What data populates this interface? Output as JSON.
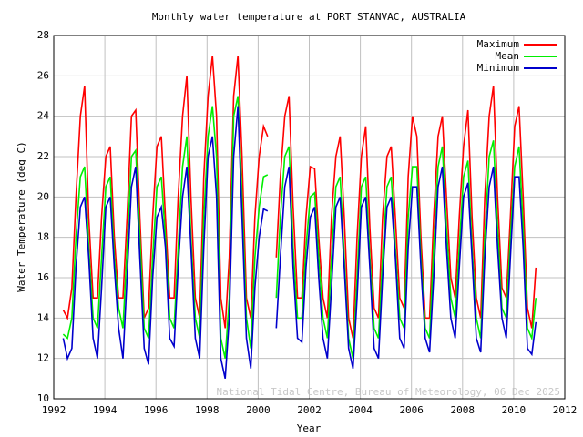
{
  "chart_data": {
    "type": "line",
    "title": "Monthly water temperature at PORT STANVAC, AUSTRALIA",
    "x_label": "Year",
    "y_label": "Water Temperature (deg C)",
    "annotation": "National Tidal Centre, Bureau of Meteorology, 06 Dec 2025",
    "x": [
      1992.37,
      1992.54,
      1992.71,
      1992.87,
      1993.04,
      1993.21,
      1993.37,
      1993.54,
      1993.71,
      1993.87,
      1994.04,
      1994.21,
      1994.37,
      1994.54,
      1994.71,
      1994.87,
      1995.04,
      1995.21,
      1995.37,
      1995.54,
      1995.71,
      1995.87,
      1996.04,
      1996.21,
      1996.37,
      1996.54,
      1996.71,
      1996.87,
      1997.04,
      1997.21,
      1997.37,
      1997.54,
      1997.71,
      1997.87,
      1998.04,
      1998.21,
      1998.37,
      1998.54,
      1998.71,
      1998.87,
      1999.04,
      1999.21,
      1999.37,
      1999.54,
      1999.71,
      1999.87,
      2000.04,
      2000.21,
      2000.37,
      2000.54,
      2000.71,
      2000.87,
      2001.04,
      2001.21,
      2001.37,
      2001.54,
      2001.71,
      2001.87,
      2002.04,
      2002.21,
      2002.37,
      2002.54,
      2002.71,
      2002.87,
      2003.04,
      2003.21,
      2003.37,
      2003.54,
      2003.71,
      2003.87,
      2004.04,
      2004.21,
      2004.37,
      2004.54,
      2004.71,
      2004.87,
      2005.04,
      2005.21,
      2005.37,
      2005.54,
      2005.71,
      2005.87,
      2006.04,
      2006.21,
      2006.37,
      2006.54,
      2006.71,
      2006.87,
      2007.04,
      2007.21,
      2007.37,
      2007.54,
      2007.71,
      2007.87,
      2008.04,
      2008.21,
      2008.37,
      2008.54,
      2008.71,
      2008.87,
      2009.04,
      2009.21,
      2009.37,
      2009.54,
      2009.71,
      2009.87,
      2010.04,
      2010.21,
      2010.37,
      2010.54,
      2010.71,
      2010.87
    ],
    "series": [
      {
        "name": "Maximum",
        "color": "#ff0000",
        "values": [
          14.4,
          14.0,
          15.5,
          20.0,
          24,
          25.5,
          19,
          15,
          15,
          19,
          22,
          22.5,
          18,
          15,
          15,
          19,
          24,
          24.3,
          19,
          14,
          14.5,
          19,
          22.5,
          23,
          19,
          15,
          15,
          20,
          24,
          26,
          20,
          15,
          14,
          21,
          25,
          27,
          24,
          15,
          13.5,
          17,
          25,
          27,
          22,
          15,
          14,
          19,
          22,
          23.5,
          23,
          null,
          17,
          21,
          24,
          25,
          19.5,
          15,
          15,
          19,
          21.5,
          21.4,
          18,
          15,
          14,
          19,
          22,
          23,
          19,
          14,
          13,
          18,
          22,
          23.5,
          18.5,
          14.5,
          14,
          19,
          22,
          22.5,
          19,
          15,
          14.5,
          21,
          24,
          23,
          18,
          14,
          14,
          19,
          23,
          24,
          20,
          16,
          15,
          19,
          22.5,
          24.3,
          19,
          15,
          14,
          20,
          24,
          25.5,
          20,
          15.5,
          15,
          19,
          23.5,
          24.5,
          20,
          14.5,
          13.5,
          16.5
        ]
      },
      {
        "name": "Mean",
        "color": "#00ee00",
        "values": [
          13.2,
          13.0,
          14.0,
          18.0,
          21,
          21.5,
          17.5,
          14,
          13.5,
          17,
          20.5,
          21,
          17,
          14.5,
          13.5,
          17.5,
          22,
          22.3,
          18,
          13.5,
          13,
          17,
          20.5,
          21,
          18,
          14,
          13.5,
          17.5,
          21.5,
          23,
          18,
          14,
          13,
          19,
          23,
          24.5,
          22,
          13,
          12,
          15,
          24,
          25,
          20,
          14,
          12.5,
          17,
          19.5,
          21,
          21.1,
          null,
          15,
          19,
          22,
          22.5,
          17.5,
          14,
          14,
          17.5,
          20,
          20.2,
          17,
          14,
          13,
          17,
          20.5,
          21,
          17,
          13,
          12,
          16,
          20.5,
          21,
          17,
          13.5,
          13,
          17,
          20.5,
          21,
          17.5,
          14,
          13.5,
          19,
          21.5,
          21.5,
          17,
          13.5,
          13,
          17.5,
          21.5,
          22.5,
          18.5,
          15,
          14,
          17.5,
          21,
          21.8,
          17.5,
          14,
          13,
          18,
          22,
          22.8,
          18.5,
          14.5,
          14,
          18,
          21.5,
          22.5,
          18.5,
          13.5,
          13,
          15
        ]
      },
      {
        "name": "Minimum",
        "color": "#0000cc",
        "values": [
          13.0,
          12.0,
          12.5,
          16.5,
          19.5,
          20,
          17,
          13,
          12,
          15.5,
          19.5,
          20,
          16.5,
          13.5,
          12,
          16,
          20.5,
          21.5,
          17,
          12.5,
          11.7,
          16,
          19,
          19.5,
          17.5,
          13,
          12.6,
          16.5,
          20,
          21.5,
          17.5,
          13,
          12,
          17.5,
          22,
          23,
          20,
          12,
          11,
          14,
          22,
          24.5,
          19,
          13,
          11.5,
          15.5,
          18,
          19.4,
          19.3,
          null,
          13.5,
          17,
          20.5,
          21.5,
          16.5,
          13,
          12.8,
          16.5,
          19,
          19.5,
          16,
          13,
          12,
          15.5,
          19.5,
          20,
          16.5,
          12.5,
          11.5,
          15,
          19.5,
          20,
          16.5,
          12.5,
          12,
          16,
          19.5,
          20,
          17,
          13,
          12.5,
          17.5,
          20.5,
          20.5,
          16.5,
          13,
          12.3,
          16,
          20.5,
          21.5,
          17.5,
          14,
          13,
          16.5,
          20,
          20.7,
          17,
          13,
          12.3,
          17,
          20.5,
          21.5,
          17.5,
          14,
          13,
          17,
          21,
          21,
          17.5,
          12.5,
          12.2,
          13.8
        ]
      }
    ],
    "xlim": [
      1992,
      2012
    ],
    "ylim": [
      10,
      28
    ],
    "xticks": [
      1992,
      1994,
      1996,
      1998,
      2000,
      2002,
      2004,
      2006,
      2008,
      2010,
      2012
    ],
    "yticks": [
      10,
      12,
      14,
      16,
      18,
      20,
      22,
      24,
      26,
      28
    ],
    "grid": true,
    "legend": "top-right"
  }
}
